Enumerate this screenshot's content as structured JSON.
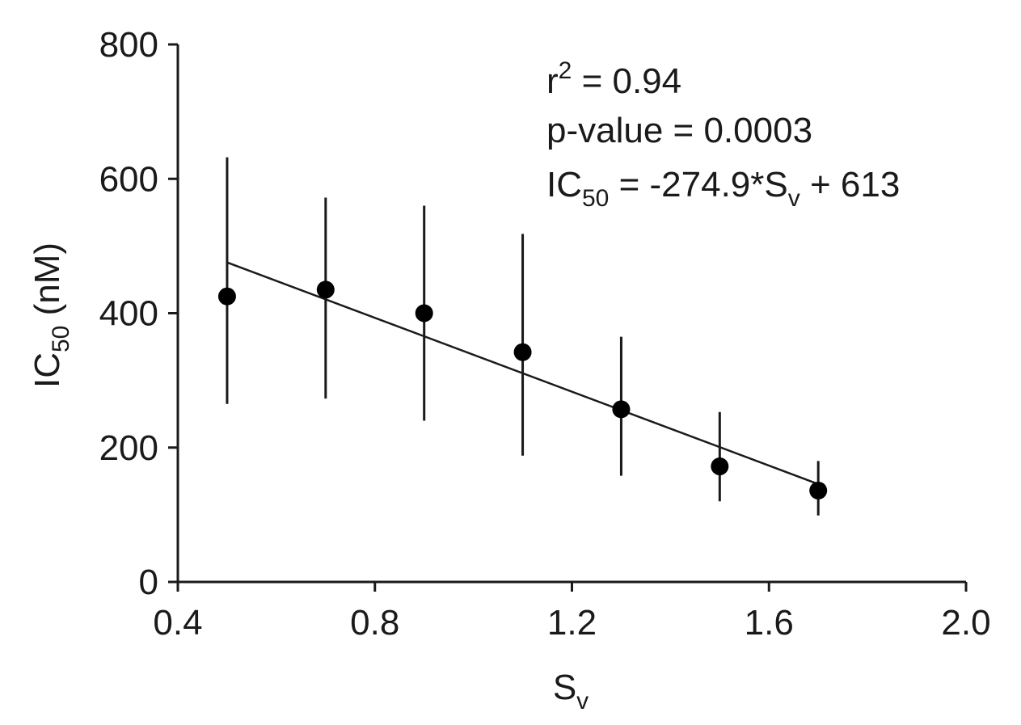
{
  "chart_data": {
    "type": "scatter",
    "xlabel": {
      "main": "S",
      "sub": "v"
    },
    "ylabel": {
      "main": "IC",
      "sub": "50",
      "suffix": " (nM)"
    },
    "xlim": [
      0.4,
      2.0
    ],
    "ylim": [
      0,
      800
    ],
    "x_ticks": [
      0.4,
      0.8,
      1.2,
      1.6,
      2.0
    ],
    "x_tick_labels": [
      "0.4",
      "0.8",
      "1.2",
      "1.6",
      "2.0"
    ],
    "y_ticks": [
      0,
      200,
      400,
      600,
      800
    ],
    "y_tick_labels": [
      "0",
      "200",
      "400",
      "600",
      "800"
    ],
    "grid": false,
    "points": [
      {
        "x": 0.5,
        "y": 425,
        "err_low": 265,
        "err_high": 632
      },
      {
        "x": 0.7,
        "y": 435,
        "err_low": 273,
        "err_high": 572
      },
      {
        "x": 0.9,
        "y": 400,
        "err_low": 240,
        "err_high": 560
      },
      {
        "x": 1.1,
        "y": 342,
        "err_low": 188,
        "err_high": 518
      },
      {
        "x": 1.3,
        "y": 257,
        "err_low": 158,
        "err_high": 365
      },
      {
        "x": 1.5,
        "y": 172,
        "err_low": 120,
        "err_high": 253
      },
      {
        "x": 1.7,
        "y": 136,
        "err_low": 99,
        "err_high": 180
      }
    ],
    "fit": {
      "slope": -274.9,
      "intercept": 613,
      "x_range": [
        0.5,
        1.7
      ]
    },
    "annotations": {
      "r2": {
        "main": "r",
        "sup": "2",
        "rest": " = 0.94"
      },
      "pvalue": "p-value = 0.0003",
      "equation": {
        "lhs_main": "IC",
        "lhs_sub": "50",
        "middle": " = -274.9*S",
        "var_sub": "v",
        "tail": " + 613"
      }
    }
  }
}
